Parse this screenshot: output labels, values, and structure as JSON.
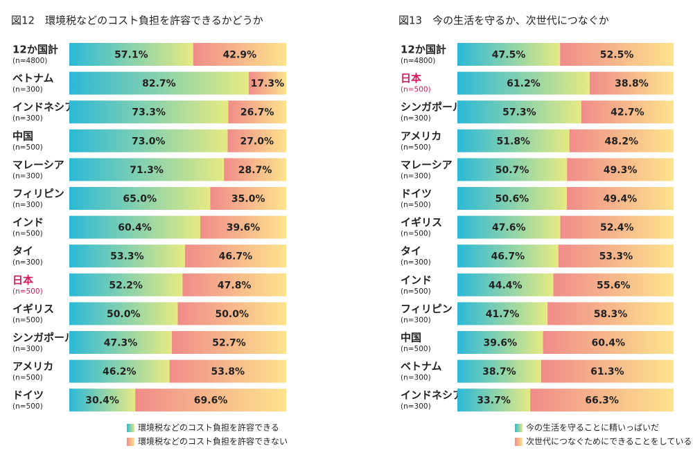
{
  "chart_data": [
    {
      "type": "stacked-bar-h",
      "title": "図12　環境税などのコスト負担を許容できるかどうか",
      "categories": [
        "12か国計",
        "ベトナム",
        "インドネシア",
        "中国",
        "マレーシア",
        "フィリピン",
        "インド",
        "タイ",
        "日本",
        "イギリス",
        "シンガポール",
        "アメリカ",
        "ドイツ"
      ],
      "sample_sizes": [
        "(n=4800)",
        "(n=300)",
        "(n=300)",
        "(n=500)",
        "(n=300)",
        "(n=300)",
        "(n=500)",
        "(n=300)",
        "(n=500)",
        "(n=500)",
        "(n=300)",
        "(n=500)",
        "(n=500)"
      ],
      "highlight": {
        "index": 8,
        "color": "#cc1a5a"
      },
      "xlim": [
        0,
        100
      ],
      "series": [
        {
          "name": "環境税などのコスト負担を許容できる",
          "color": [
            "#2bb9d7",
            "#e6ea82"
          ],
          "values": [
            57.1,
            82.7,
            73.3,
            73.0,
            71.3,
            65.0,
            60.4,
            53.3,
            52.2,
            50.0,
            47.3,
            46.2,
            30.4
          ],
          "value_labels": [
            "57.1%",
            "82.7%",
            "73.3%",
            "73.0%",
            "71.3%",
            "65.0%",
            "60.4%",
            "53.3%",
            "52.2%",
            "50.0%",
            "47.3%",
            "46.2%",
            "30.4%"
          ]
        },
        {
          "name": "環境税などのコスト負担を許容できない",
          "color": [
            "#f08c8a",
            "#fde38c"
          ],
          "values": [
            42.9,
            17.3,
            26.7,
            27.0,
            28.7,
            35.0,
            39.6,
            46.7,
            47.8,
            50.0,
            52.7,
            53.8,
            69.6
          ],
          "value_labels": [
            "42.9%",
            "17.3%",
            "26.7%",
            "27.0%",
            "28.7%",
            "35.0%",
            "39.6%",
            "46.7%",
            "47.8%",
            "50.0%",
            "52.7%",
            "53.8%",
            "69.6%"
          ]
        }
      ]
    },
    {
      "type": "stacked-bar-h",
      "title": "図13　今の生活を守るか、次世代につなぐか",
      "categories": [
        "12か国計",
        "日本",
        "シンガポール",
        "アメリカ",
        "マレーシア",
        "ドイツ",
        "イギリス",
        "タイ",
        "インド",
        "フィリピン",
        "中国",
        "ベトナム",
        "インドネシア"
      ],
      "sample_sizes": [
        "(n=4800)",
        "(n=500)",
        "(n=300)",
        "(n=500)",
        "(n=300)",
        "(n=500)",
        "(n=500)",
        "(n=300)",
        "(n=500)",
        "(n=300)",
        "(n=500)",
        "(n=300)",
        "(n=300)"
      ],
      "highlight": {
        "index": 1,
        "color": "#cc1a5a"
      },
      "xlim": [
        0,
        100
      ],
      "series": [
        {
          "name": "今の生活を守ることに精いっぱいだ",
          "color": [
            "#2bb9d7",
            "#e6ea82"
          ],
          "values": [
            47.5,
            61.2,
            57.3,
            51.8,
            50.7,
            50.6,
            47.6,
            46.7,
            44.4,
            41.7,
            39.6,
            38.7,
            33.7
          ],
          "value_labels": [
            "47.5%",
            "61.2%",
            "57.3%",
            "51.8%",
            "50.7%",
            "50.6%",
            "47.6%",
            "46.7%",
            "44.4%",
            "41.7%",
            "39.6%",
            "38.7%",
            "33.7%"
          ]
        },
        {
          "name": "次世代につなぐためにできることをしている",
          "color": [
            "#f08c8a",
            "#fde38c"
          ],
          "values": [
            52.5,
            38.8,
            42.7,
            48.2,
            49.3,
            49.4,
            52.4,
            53.3,
            55.6,
            58.3,
            60.4,
            61.3,
            66.3
          ],
          "value_labels": [
            "52.5%",
            "38.8%",
            "42.7%",
            "48.2%",
            "49.3%",
            "49.4%",
            "52.4%",
            "53.3%",
            "55.6%",
            "58.3%",
            "60.4%",
            "61.3%",
            "66.3%"
          ]
        }
      ]
    }
  ]
}
